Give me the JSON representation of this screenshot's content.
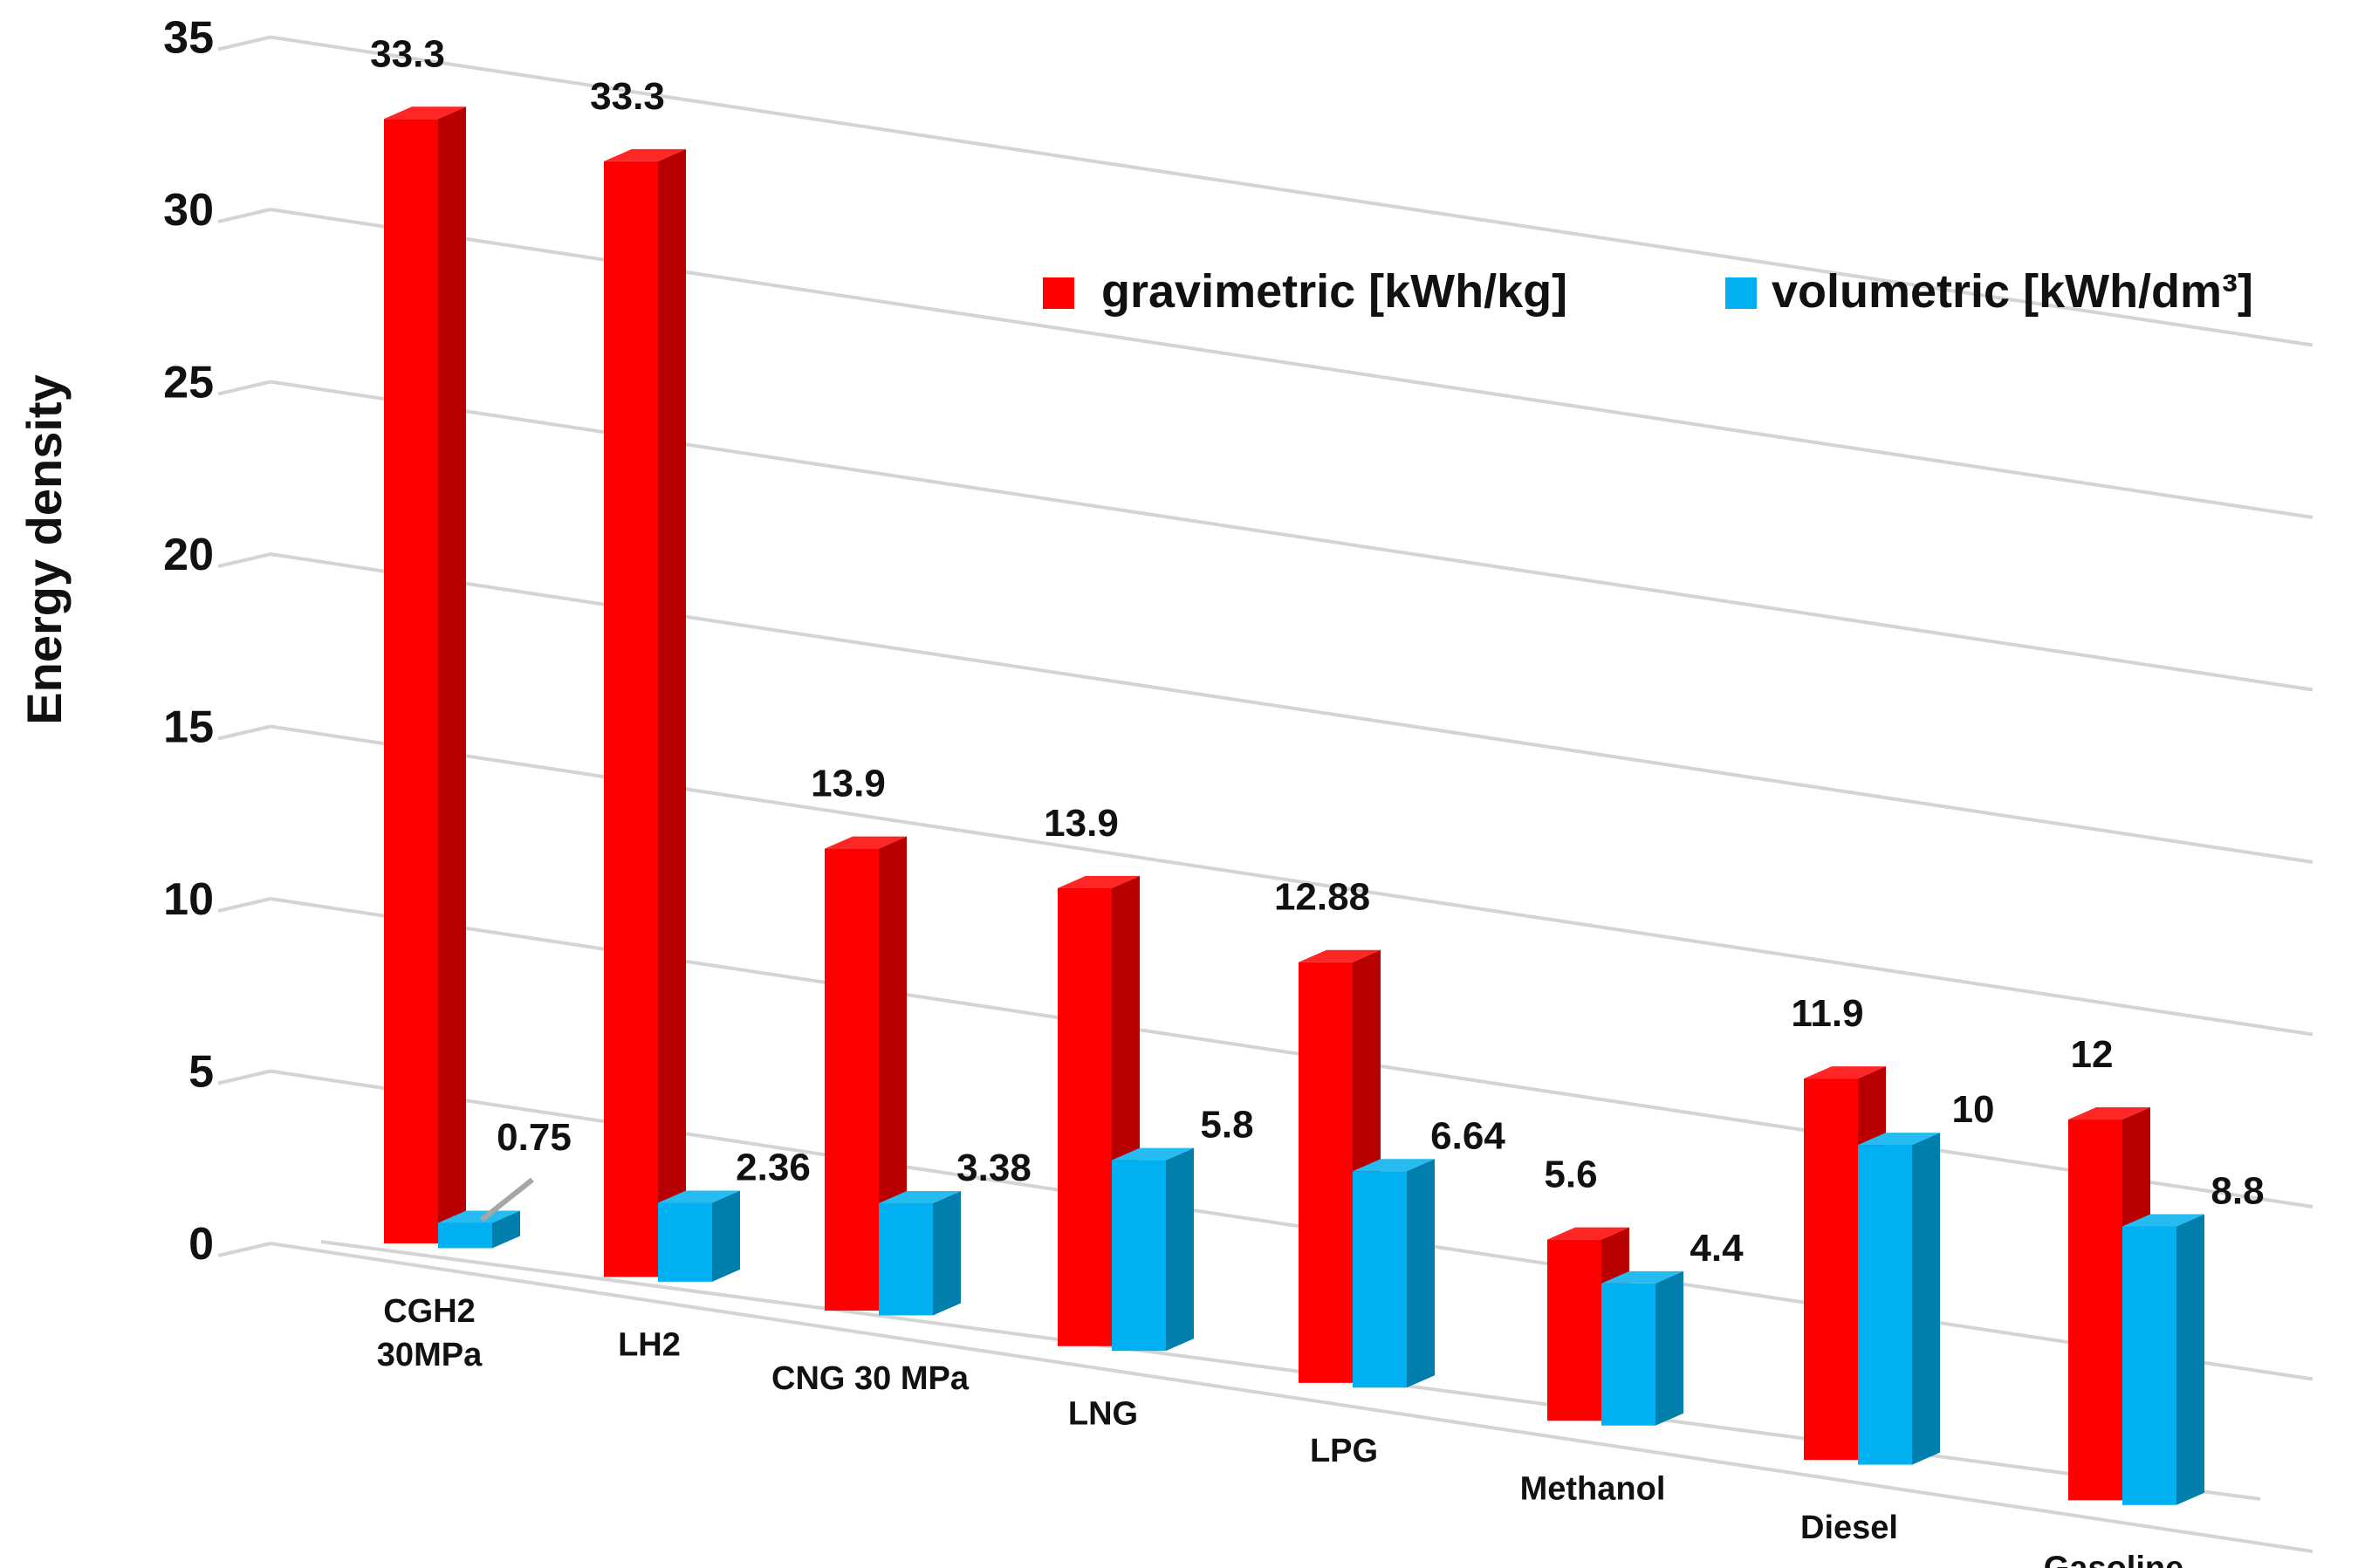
{
  "chart_data": {
    "type": "bar",
    "title": "",
    "xlabel": "",
    "ylabel": "Energy density",
    "ylim": [
      0,
      35
    ],
    "yticks": [
      0,
      5,
      10,
      15,
      20,
      25,
      30,
      35
    ],
    "grid": true,
    "legend_position": "top-right",
    "categories": [
      [
        "CGH2",
        "30MPa"
      ],
      [
        "LH2"
      ],
      [
        "CNG 30 MPa"
      ],
      [
        "LNG"
      ],
      [
        "LPG"
      ],
      [
        "Methanol"
      ],
      [
        "Diesel"
      ],
      [
        "Gasoline"
      ]
    ],
    "series": [
      {
        "name": "gravimetric [kWh/kg]",
        "color": "#ff0000",
        "values": [
          33.3,
          33.3,
          13.9,
          13.9,
          12.88,
          5.6,
          11.9,
          12
        ],
        "labels": [
          "33.3",
          "33.3",
          "13.9",
          "13.9",
          "12.88",
          "5.6",
          "11.9",
          "12"
        ]
      },
      {
        "name": "volumetric [kWh/dm³]",
        "color": "#00b0f0",
        "values": [
          0.75,
          2.36,
          3.38,
          5.8,
          6.64,
          4.4,
          10,
          8.8
        ],
        "labels": [
          "0.75",
          "2.36",
          "3.38",
          "5.8",
          "6.64",
          "4.4",
          "10",
          "8.8"
        ]
      }
    ]
  }
}
